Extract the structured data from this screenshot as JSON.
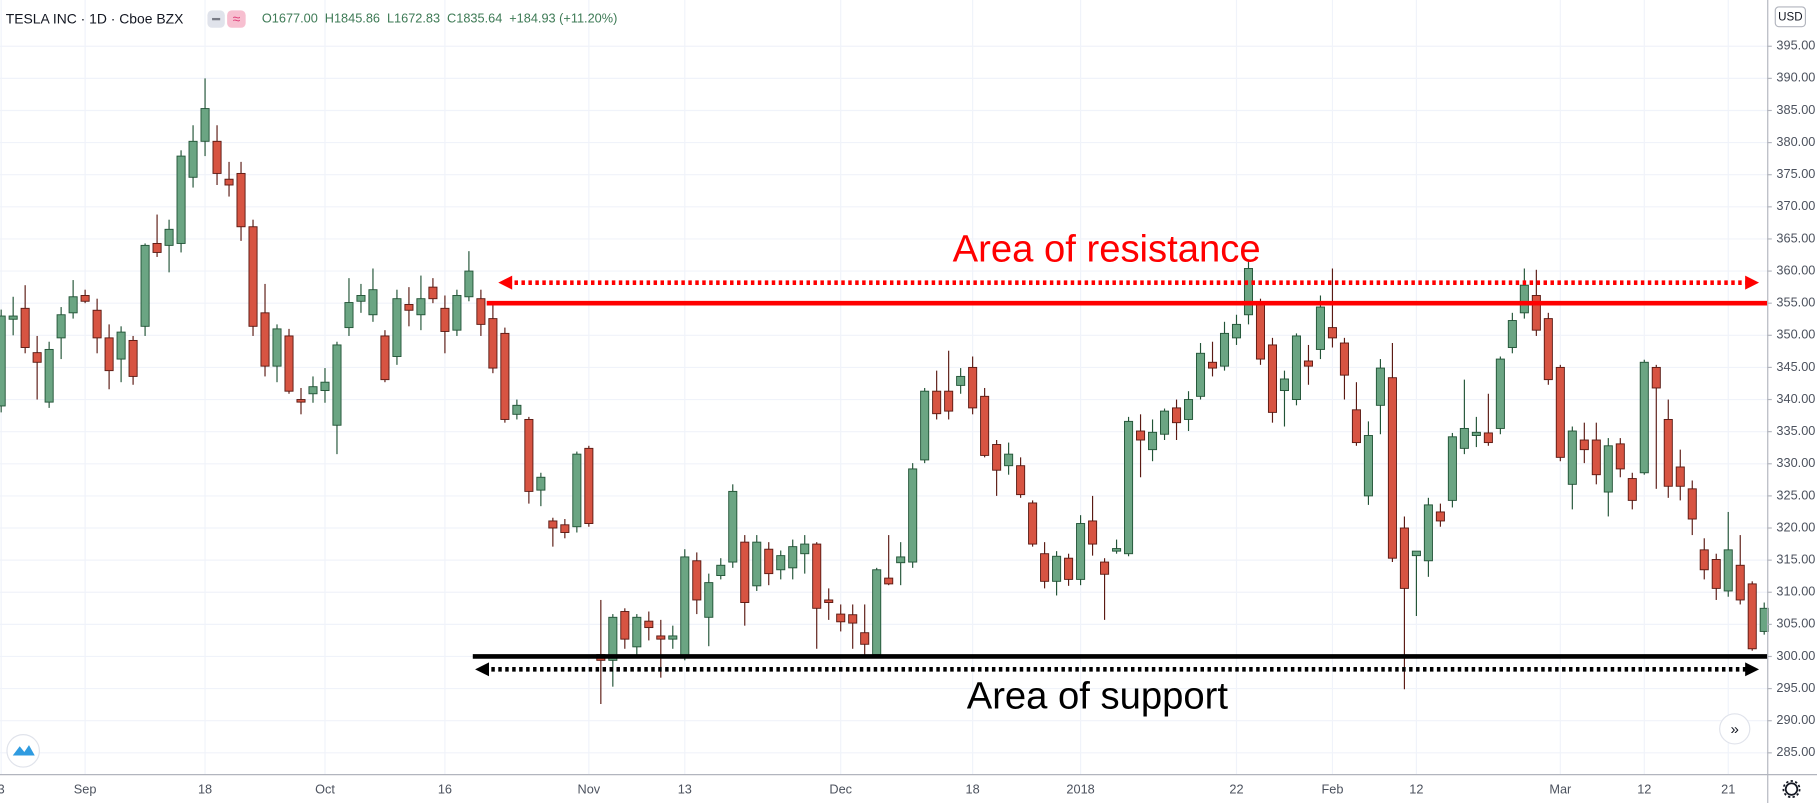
{
  "header": {
    "symbol": "TESLA INC · 1D · Cboe BZX",
    "ohlc": [
      "O1677.00",
      "H1845.86",
      "L1672.83",
      "C1835.64",
      "+184.93 (+11.20%)"
    ]
  },
  "chart_data": {
    "type": "candlestick",
    "categories": [
      "3",
      null,
      null,
      null,
      null,
      null,
      null,
      "Sep",
      null,
      null,
      null,
      null,
      null,
      null,
      null,
      null,
      null,
      "18",
      null,
      null,
      null,
      null,
      null,
      null,
      null,
      null,
      null,
      "Oct",
      null,
      null,
      null,
      null,
      null,
      null,
      null,
      null,
      null,
      "16",
      null,
      null,
      null,
      null,
      null,
      null,
      null,
      null,
      null,
      null,
      null,
      "Nov",
      null,
      null,
      null,
      null,
      null,
      null,
      null,
      "13",
      null,
      null,
      null,
      null,
      null,
      null,
      null,
      null,
      null,
      null,
      null,
      null,
      "Dec",
      null,
      null,
      null,
      null,
      null,
      null,
      null,
      null,
      null,
      null,
      "18",
      null,
      null,
      null,
      null,
      null,
      null,
      null,
      null,
      "2018",
      null,
      null,
      null,
      null,
      null,
      null,
      null,
      null,
      null,
      null,
      null,
      null,
      "22",
      null,
      null,
      null,
      null,
      null,
      null,
      null,
      "Feb",
      null,
      null,
      null,
      null,
      null,
      null,
      "12",
      null,
      null,
      null,
      null,
      null,
      null,
      null,
      null,
      null,
      null,
      null,
      "Mar",
      null,
      null,
      null,
      null,
      null,
      null,
      "12",
      null,
      null,
      null,
      null,
      null,
      null,
      "21",
      null,
      null,
      null
    ],
    "open": [
      339,
      352.5,
      354.2,
      347.3,
      339.6,
      349.6,
      353.5,
      356.2,
      353.9,
      349.6,
      346.3,
      349.2,
      351.4,
      364.3,
      364,
      364.3,
      374.6,
      380.2,
      380.2,
      374.3,
      375.2,
      366.9,
      353.5,
      345.2,
      349.9,
      340,
      340.9,
      341.4,
      336,
      351.2,
      355.3,
      353.2,
      349.9,
      346.7,
      354.8,
      353.2,
      357.5,
      354.2,
      350.8,
      356,
      355.7,
      352.6,
      350.3,
      337.7,
      336.9,
      325.9,
      321.1,
      320.5,
      320.2,
      332.4,
      300.3,
      299.4,
      307,
      301.5,
      305.5,
      303.2,
      302.7,
      300.1,
      314.9,
      306.1,
      312.6,
      314.7,
      317.8,
      311,
      316.7,
      313.5,
      313.8,
      316,
      317.5,
      308.8,
      306.6,
      306.5,
      303.7,
      300.3,
      312.2,
      314.6,
      314.7,
      330.6,
      341.3,
      341.3,
      342.2,
      345,
      340.5,
      333,
      329.7,
      329.7,
      323.9,
      316,
      311.7,
      315.3,
      312,
      321.1,
      314.7,
      316.4,
      316,
      335.1,
      332.2,
      334.6,
      338.7,
      336.9,
      340.5,
      345.8,
      345.2,
      349.6,
      353.2,
      355,
      348.5,
      341.4,
      340,
      346,
      347.8,
      351.2,
      348.8,
      338.4,
      325,
      339.1,
      343.4,
      320,
      315.7,
      314.9,
      322.5,
      324.3,
      332.4,
      334.4,
      334.8,
      335.5,
      348.1,
      353.5,
      356.2,
      352.6,
      345,
      326.8,
      333.7,
      333.7,
      325.6,
      333.1,
      327.7,
      328.6,
      345,
      336.9,
      329.5,
      326.1,
      316.6,
      315.1,
      310.2,
      314.2,
      311.3,
      303.9
    ],
    "high": [
      354,
      356,
      357.8,
      349.9,
      349,
      354.4,
      358.6,
      357.1,
      355.7,
      351.7,
      351.4,
      349.9,
      364.3,
      368.8,
      368,
      378.8,
      382.7,
      390,
      382.7,
      377,
      377,
      368,
      358,
      351.7,
      351,
      341.8,
      343.6,
      344.9,
      349,
      358.9,
      358,
      360.4,
      350.8,
      357.1,
      357.5,
      359.3,
      358.9,
      356.2,
      357.1,
      363.1,
      357.1,
      355,
      351.2,
      340,
      337.3,
      328.6,
      321.6,
      321.4,
      331.9,
      332.8,
      308.8,
      306.6,
      307.5,
      306.6,
      307,
      305.7,
      304.8,
      316.7,
      316.2,
      312.9,
      315.3,
      326.8,
      318.9,
      318.9,
      317.8,
      316.5,
      318.2,
      318.9,
      317.8,
      310.6,
      308.1,
      308.1,
      308.1,
      313.8,
      318.9,
      317.8,
      330.1,
      341.8,
      344.5,
      347.6,
      344.9,
      346.7,
      341.8,
      333.7,
      333.3,
      331,
      324.3,
      317.8,
      316.4,
      316,
      322,
      325,
      315.3,
      318.2,
      337.3,
      337.7,
      336.9,
      338.6,
      340,
      341.3,
      348.8,
      349,
      352.1,
      353.2,
      361.6,
      355.7,
      349.6,
      344.5,
      350.3,
      348.5,
      356.2,
      360.4,
      349.6,
      342.7,
      336.6,
      346.3,
      348.8,
      321.8,
      316.4,
      324.7,
      323.8,
      334.8,
      343.1,
      337.3,
      340.9,
      346.7,
      353.5,
      360.4,
      360.2,
      353.5,
      345.4,
      335.8,
      336.4,
      336.4,
      334,
      334,
      328.6,
      346.2,
      345.4,
      340,
      332.2,
      327.4,
      318.4,
      316,
      322.5,
      318.9,
      311.7,
      308.4
    ],
    "low": [
      338,
      350,
      347.2,
      340,
      338.7,
      346.3,
      352.6,
      355,
      347.2,
      341.6,
      342.7,
      342.3,
      349.9,
      362.2,
      359.8,
      362.9,
      373,
      377.9,
      373.4,
      371.6,
      364.7,
      349.9,
      343.6,
      342.7,
      340.9,
      337.7,
      339.5,
      339.5,
      331.5,
      349.9,
      353.5,
      352.1,
      342.7,
      345.4,
      351.4,
      350.8,
      355,
      347.2,
      349.9,
      355.3,
      349.9,
      344.1,
      336.4,
      336.9,
      323.8,
      323.4,
      317.1,
      318.4,
      319.3,
      320.2,
      292.6,
      295.3,
      301.2,
      300.3,
      302.5,
      296.7,
      301.2,
      299.4,
      306.6,
      301.6,
      312,
      313.8,
      304.8,
      310.2,
      311.1,
      312,
      312,
      312.9,
      301.2,
      305.7,
      303.9,
      301.2,
      300.3,
      300.3,
      311.1,
      311.1,
      313.8,
      330.1,
      336.9,
      336.9,
      340.9,
      337.7,
      331,
      325,
      328.3,
      324.7,
      317.1,
      310.6,
      309.5,
      311,
      311.1,
      315.7,
      305.7,
      316,
      315.6,
      327.9,
      330.4,
      333.7,
      333.7,
      335.1,
      340,
      343.6,
      344.5,
      348.5,
      351.7,
      345.4,
      336.4,
      335.8,
      339.1,
      342.3,
      346.3,
      348.1,
      340,
      332.8,
      323.6,
      334.6,
      314.7,
      294.9,
      306.3,
      312.4,
      320.2,
      323.2,
      331.5,
      332.6,
      332.8,
      334.6,
      347.2,
      352.6,
      349.9,
      342.3,
      330.4,
      322.9,
      330.1,
      326.8,
      321.8,
      327.9,
      322.9,
      328.3,
      326.1,
      324.7,
      324.3,
      318.9,
      312,
      308.8,
      309.3,
      308.1,
      300.9,
      303.4
    ],
    "close": [
      353,
      353,
      348.1,
      345.8,
      347.8,
      353.2,
      356,
      355.3,
      349.6,
      344.5,
      350.5,
      343.6,
      364,
      362.9,
      366.5,
      377.9,
      380.2,
      385.3,
      375.2,
      373.4,
      366.9,
      351.4,
      345.2,
      351,
      341.3,
      339.6,
      342,
      342.7,
      348.5,
      355.1,
      356.2,
      357.1,
      343.1,
      355.7,
      353.9,
      355.7,
      355.7,
      350.6,
      356.2,
      360,
      351.7,
      344.9,
      336.9,
      339.1,
      325.7,
      327.9,
      320,
      319.3,
      331.5,
      320.7,
      299.4,
      306.1,
      302.7,
      306.1,
      304.5,
      302.7,
      303.2,
      315.5,
      308.8,
      311.5,
      314.2,
      325.7,
      308.4,
      317.8,
      312.9,
      315.7,
      317.1,
      317.5,
      307.5,
      308.4,
      305.4,
      305.2,
      301.9,
      313.5,
      311.3,
      315.5,
      329.2,
      341.3,
      337.8,
      338.2,
      343.6,
      338.7,
      331.3,
      329,
      331.5,
      325.2,
      317.5,
      311.7,
      315.6,
      312,
      320.7,
      317.5,
      312.8,
      316.8,
      336.6,
      333.7,
      334.9,
      338.2,
      336.4,
      340,
      347.2,
      344.9,
      350.3,
      351.7,
      360.4,
      346.3,
      338,
      343.2,
      349.9,
      345.2,
      354.4,
      349.6,
      343.8,
      333.3,
      334.4,
      344.9,
      315.3,
      310.6,
      316.4,
      323.6,
      321.1,
      334.2,
      335.5,
      334.9,
      333.3,
      346.3,
      352.3,
      357.8,
      350.8,
      343.1,
      331,
      335.1,
      332.2,
      328.3,
      332.8,
      329.2,
      324.3,
      345.8,
      341.8,
      326.5,
      326.5,
      321.4,
      313.5,
      310.6,
      316.6,
      308.8,
      301.2,
      307.5
    ],
    "up_color": "#6ba583",
    "down_color": "#d75442",
    "ylim": [
      281.7,
      402.2
    ],
    "yticks": [
      {
        "value": 285,
        "label": "285.00"
      },
      {
        "value": 290,
        "label": "290.00"
      },
      {
        "value": 295,
        "label": "295.00"
      },
      {
        "value": 300,
        "label": "300.00"
      },
      {
        "value": 305,
        "label": "305.00"
      },
      {
        "value": 310,
        "label": "310.00"
      },
      {
        "value": 315,
        "label": "315.00"
      },
      {
        "value": 320,
        "label": "320.00"
      },
      {
        "value": 325,
        "label": "325.00"
      },
      {
        "value": 330,
        "label": "330.00"
      },
      {
        "value": 335,
        "label": "335.00"
      },
      {
        "value": 340,
        "label": "340.00"
      },
      {
        "value": 345,
        "label": "345.00"
      },
      {
        "value": 350,
        "label": "350.00"
      },
      {
        "value": 355,
        "label": "355.00"
      },
      {
        "value": 360,
        "label": "360.00"
      },
      {
        "value": 365,
        "label": "365.00"
      },
      {
        "value": 370,
        "label": "370.00"
      },
      {
        "value": 375,
        "label": "375.00"
      },
      {
        "value": 380,
        "label": "380.00"
      },
      {
        "value": 385,
        "label": "385.00"
      },
      {
        "value": 390,
        "label": "390.00"
      },
      {
        "value": 395,
        "label": "395.00"
      }
    ],
    "y_axis_label": "USD",
    "grid": true,
    "levels": [
      {
        "name": "Area of resistance",
        "value": 355,
        "arrow_value": 358.2,
        "color": "#ff0000"
      },
      {
        "name": "Area of support",
        "value": 300,
        "arrow_value": 298,
        "color": "#000000"
      }
    ]
  }
}
